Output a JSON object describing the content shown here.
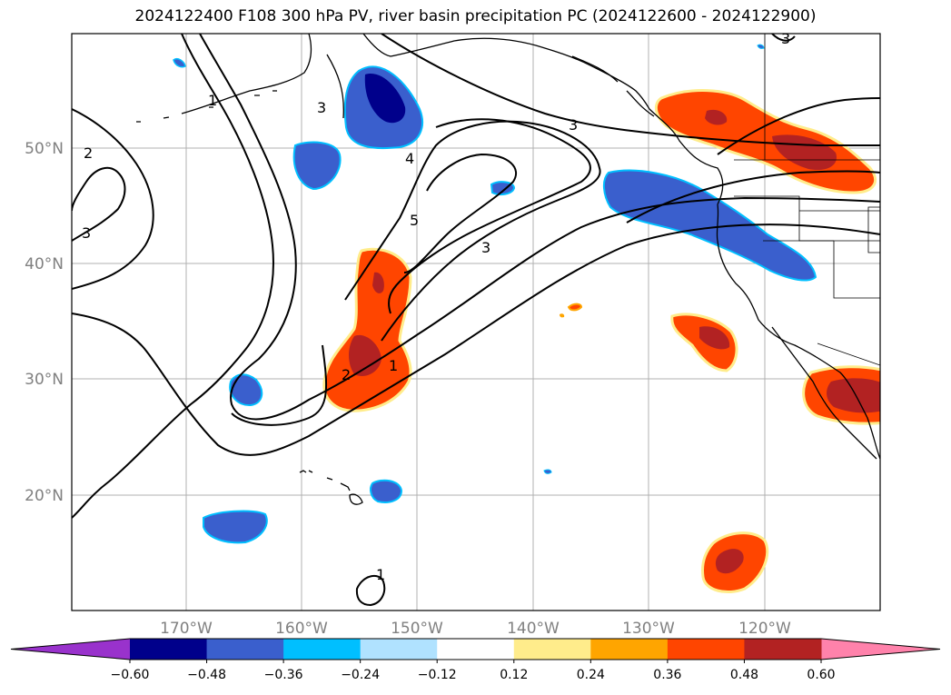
{
  "title": "2024122400 F108 300 hPa PV, river basin precipitation PC (2024122600 - 2024122900)",
  "map": {
    "lat_labels": [
      "50°N",
      "40°N",
      "30°N",
      "20°N"
    ],
    "lon_labels": [
      "170°W",
      "160°W",
      "150°W",
      "140°W",
      "130°W",
      "120°W"
    ],
    "gridlines": true
  },
  "pv_contour_labels": [
    "1",
    "2",
    "3",
    "3",
    "4",
    "5",
    "3",
    "3",
    "2",
    "1",
    "3",
    "1"
  ],
  "colorbar": {
    "ticks": [
      "−0.60",
      "−0.48",
      "−0.36",
      "−0.24",
      "−0.12",
      "0.12",
      "0.24",
      "0.36",
      "0.48",
      "0.60"
    ],
    "colors": [
      "#9932cc",
      "#00008b",
      "#3a5fcd",
      "#00bfff",
      "#b0e2ff",
      "#ffffff",
      "#ffec8b",
      "#ffa500",
      "#ff4500",
      "#b22222",
      "#ff82ab"
    ],
    "extend": "both"
  }
}
